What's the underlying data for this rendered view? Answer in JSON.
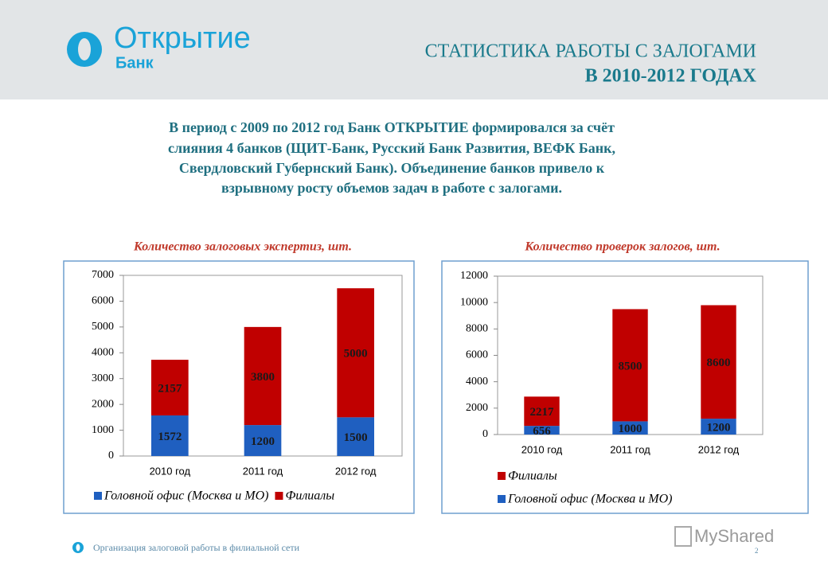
{
  "header": {
    "logo_name": "Открытие",
    "logo_sub": "Банк",
    "title_lines": [
      "СТАТИСТИКА РАБОТЫ С ЗАЛОГАМИ",
      "В 2010-2012 ГОДАХ"
    ]
  },
  "intro": {
    "lines": [
      "В период с 2009 по 2012 год Банк ОТКРЫТИЕ формировался за счёт",
      "слияния 4 банков (ЩИТ-Банк, Русский Банк Развития, ВЕФК Банк,",
      "Свердловский Губернский Банк). Объединение банков привело к",
      "взрывному росту объемов задач в работе с залогами."
    ]
  },
  "chart_data": [
    {
      "type": "bar",
      "stacked": true,
      "title": "Количество залоговых экспертиз, шт.",
      "categories": [
        "2010 год",
        "2011 год",
        "2012 год"
      ],
      "series": [
        {
          "name": "Головной офис (Москва и МО)",
          "color": "#1f5fc0",
          "values": [
            1572,
            1200,
            1500
          ]
        },
        {
          "name": "Филиалы",
          "color": "#c00000",
          "values": [
            2157,
            3800,
            5000
          ]
        }
      ],
      "ylim": [
        0,
        7000
      ],
      "yticks": [
        0,
        1000,
        2000,
        3000,
        4000,
        5000,
        6000,
        7000
      ],
      "grid": false,
      "legend": "bottom",
      "legend_reversed": false
    },
    {
      "type": "bar",
      "stacked": true,
      "title": "Количество проверок залогов, шт.",
      "categories": [
        "2010 год",
        "2011 год",
        "2012 год"
      ],
      "series": [
        {
          "name": "Головной офис (Москва и МО)",
          "color": "#1f5fc0",
          "values": [
            656,
            1000,
            1200
          ]
        },
        {
          "name": "Филиалы",
          "color": "#c00000",
          "values": [
            2217,
            8500,
            8600
          ]
        }
      ],
      "ylim": [
        0,
        12000
      ],
      "yticks": [
        0,
        2000,
        4000,
        6000,
        8000,
        10000,
        12000
      ],
      "grid": false,
      "legend": "bottom",
      "legend_reversed": true
    }
  ],
  "footer": {
    "text": "Организация залоговой работы в филиальной сети",
    "page": "2",
    "watermark": "MyShared"
  }
}
